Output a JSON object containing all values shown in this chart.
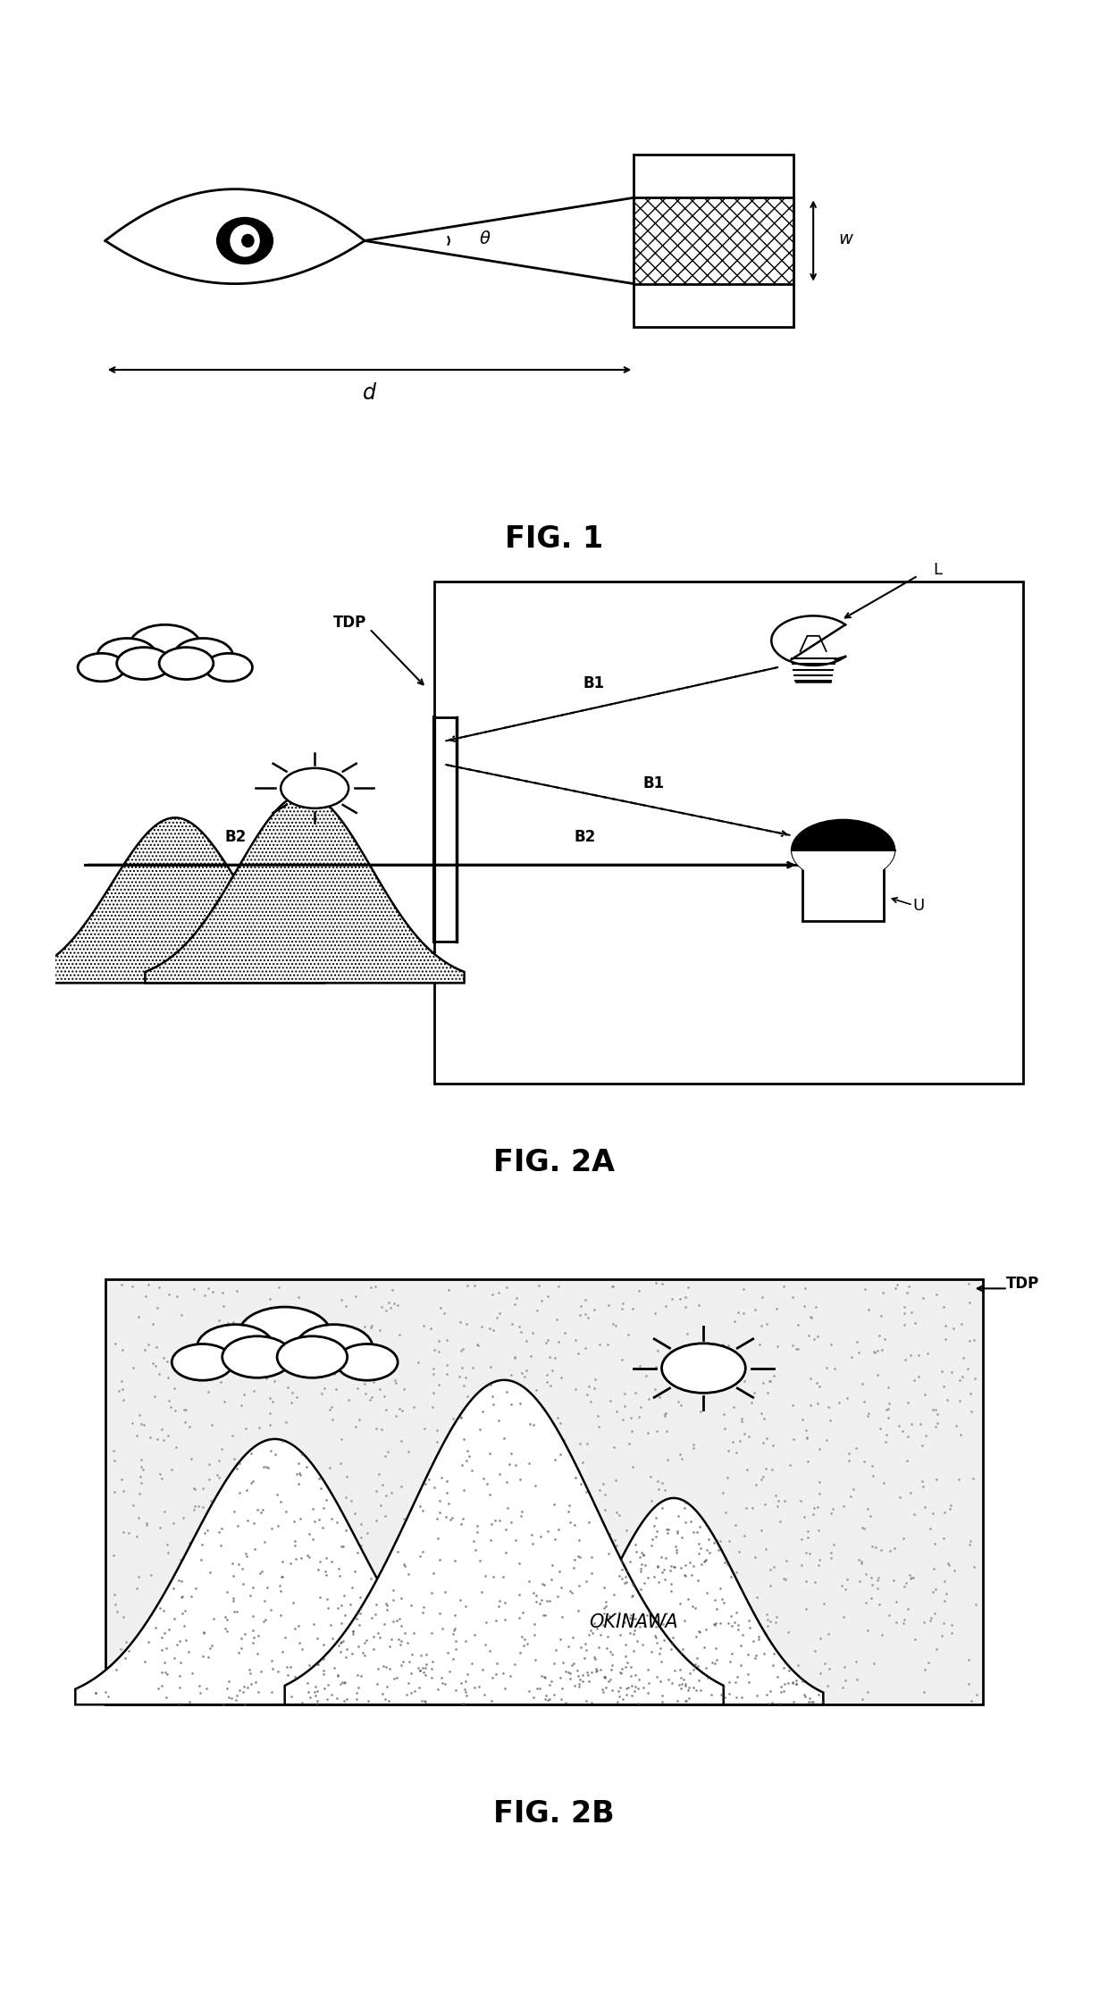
{
  "fig_width": 12.4,
  "fig_height": 22.4,
  "bg_color": "white",
  "fig1_caption": "FIG. 1",
  "fig2a_caption": "FIG. 2A",
  "fig2b_caption": "FIG. 2B",
  "label_theta": "θ",
  "label_w": "w",
  "label_d": "d",
  "label_TDP": "TDP",
  "label_L": "L",
  "label_B1": "B1",
  "label_B2": "B2",
  "label_U": "U",
  "label_OKINAWA": "OKINAWA"
}
